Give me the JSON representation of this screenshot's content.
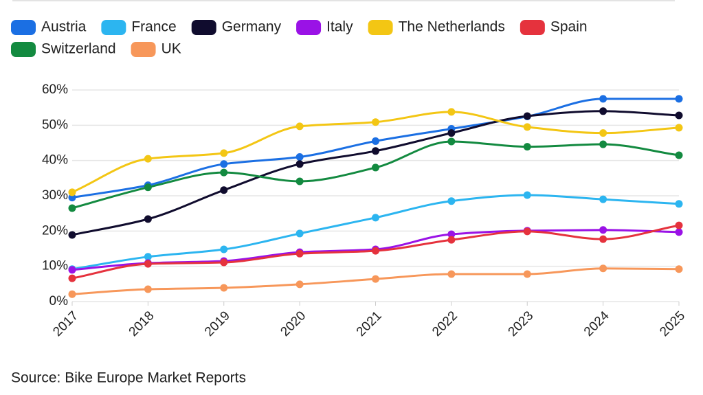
{
  "chart_data": {
    "type": "line",
    "categories": [
      "2017",
      "2018",
      "2019",
      "2020",
      "2021",
      "2022",
      "2023",
      "2024",
      "2025"
    ],
    "series": [
      {
        "name": "Austria",
        "color": "#1b6fe3",
        "values": [
          29.5,
          33,
          39,
          41,
          45.5,
          49,
          52.5,
          57.5,
          57.5
        ]
      },
      {
        "name": "France",
        "color": "#2cb5f0",
        "values": [
          9.2,
          12.7,
          14.8,
          19.3,
          23.8,
          28.5,
          30.2,
          29,
          27.7
        ]
      },
      {
        "name": "Germany",
        "color": "#100c2e",
        "values": [
          18.9,
          23.4,
          31.6,
          39,
          42.7,
          47.8,
          52.6,
          54,
          52.8
        ]
      },
      {
        "name": "Italy",
        "color": "#9a12e6",
        "values": [
          9,
          10.9,
          11.5,
          14,
          14.8,
          19.1,
          20.1,
          20.3,
          19.7
        ]
      },
      {
        "name": "The Netherlands",
        "color": "#f3c614",
        "values": [
          31,
          40.5,
          42.1,
          49.7,
          50.9,
          53.8,
          49.5,
          47.8,
          49.3
        ]
      },
      {
        "name": "Spain",
        "color": "#e5323d",
        "values": [
          6.6,
          10.7,
          11.1,
          13.6,
          14.4,
          17.5,
          19.9,
          17.7,
          21.6
        ]
      },
      {
        "name": "Switzerland",
        "color": "#138a40",
        "values": [
          26.5,
          32.4,
          36.6,
          34.1,
          38,
          45.4,
          43.9,
          44.6,
          41.5
        ]
      },
      {
        "name": "UK",
        "color": "#f7975a",
        "values": [
          2.1,
          3.5,
          3.9,
          4.9,
          6.4,
          7.8,
          7.8,
          9.4,
          9.2
        ]
      }
    ],
    "ylim": [
      0,
      60
    ],
    "yticks": [
      {
        "value": 0,
        "label": "0%"
      },
      {
        "value": 10,
        "label": "10%"
      },
      {
        "value": 20,
        "label": "20%"
      },
      {
        "value": 30,
        "label": "30%"
      },
      {
        "value": 40,
        "label": "40%"
      },
      {
        "value": 50,
        "label": "50%"
      },
      {
        "value": 60,
        "label": "60%"
      }
    ],
    "grid": true,
    "legend": "top",
    "source": "Source: Bike Europe Market Reports"
  }
}
